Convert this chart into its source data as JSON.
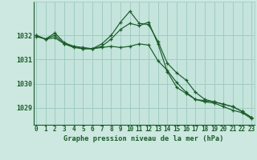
{
  "background_color": "#cce8e0",
  "plot_bg_color": "#c4e4dc",
  "grid_color": "#9dc8c0",
  "line_color": "#1a5c28",
  "title": "Graphe pression niveau de la mer (hPa)",
  "x_values": [
    0,
    1,
    2,
    3,
    4,
    5,
    6,
    7,
    8,
    9,
    10,
    11,
    12,
    13,
    14,
    15,
    16,
    17,
    18,
    19,
    20,
    21,
    22,
    23
  ],
  "ylim": [
    1028.3,
    1033.4
  ],
  "yticks": [
    1029,
    1030,
    1031,
    1032
  ],
  "series": [
    [
      1031.95,
      1031.85,
      1031.9,
      1031.65,
      1031.55,
      1031.45,
      1031.45,
      1031.5,
      1031.55,
      1031.5,
      1031.55,
      1031.65,
      1031.6,
      1030.95,
      1030.55,
      1030.05,
      1029.65,
      1029.35,
      1029.3,
      1029.25,
      1029.15,
      1029.05,
      1028.85,
      1028.6
    ],
    [
      1032.0,
      1031.85,
      1032.0,
      1031.65,
      1031.5,
      1031.45,
      1031.45,
      1031.55,
      1031.85,
      1032.25,
      1032.5,
      1032.4,
      1032.55,
      1031.65,
      1030.5,
      1029.85,
      1029.6,
      1029.35,
      1029.25,
      1029.2,
      1029.05,
      1028.9,
      1028.8,
      1028.55
    ],
    [
      1032.0,
      1031.85,
      1032.1,
      1031.7,
      1031.55,
      1031.5,
      1031.45,
      1031.65,
      1032.0,
      1032.55,
      1033.0,
      1032.5,
      1032.45,
      1031.75,
      1030.85,
      1030.45,
      1030.15,
      1029.65,
      1029.35,
      1029.25,
      1029.15,
      1029.05,
      1028.85,
      1028.6
    ]
  ],
  "title_fontsize": 6.2,
  "tick_fontsize": 5.5,
  "ytick_fontsize": 6.0
}
